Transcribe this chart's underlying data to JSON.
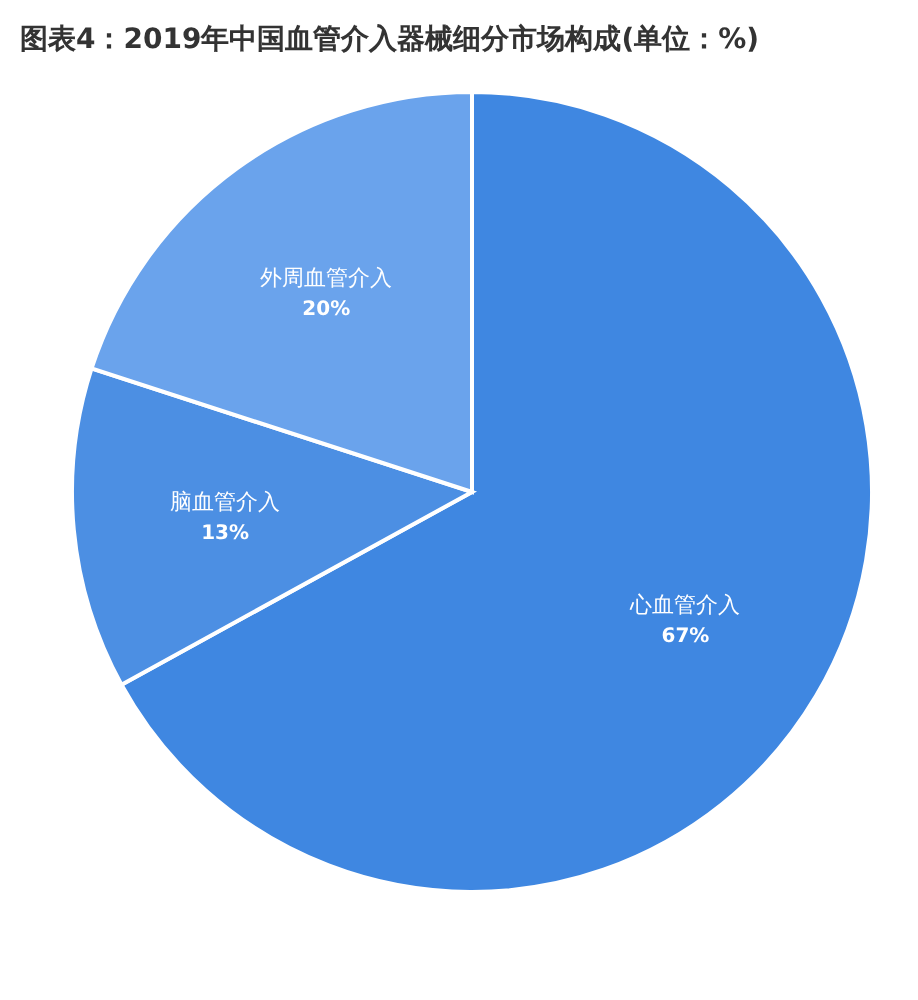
{
  "chart_data": {
    "type": "pie",
    "title": "图表4：2019年中国血管介入器械细分市场构成(单位：%)",
    "categories": [
      "心血管介入",
      "脑血管介入",
      "外周血管介入"
    ],
    "values": [
      67,
      13,
      20
    ],
    "colors": [
      "#3f87e1",
      "#4c8fe3",
      "#6aa3ec"
    ],
    "value_labels": [
      "67%",
      "13%",
      "20%"
    ],
    "legend": false
  }
}
